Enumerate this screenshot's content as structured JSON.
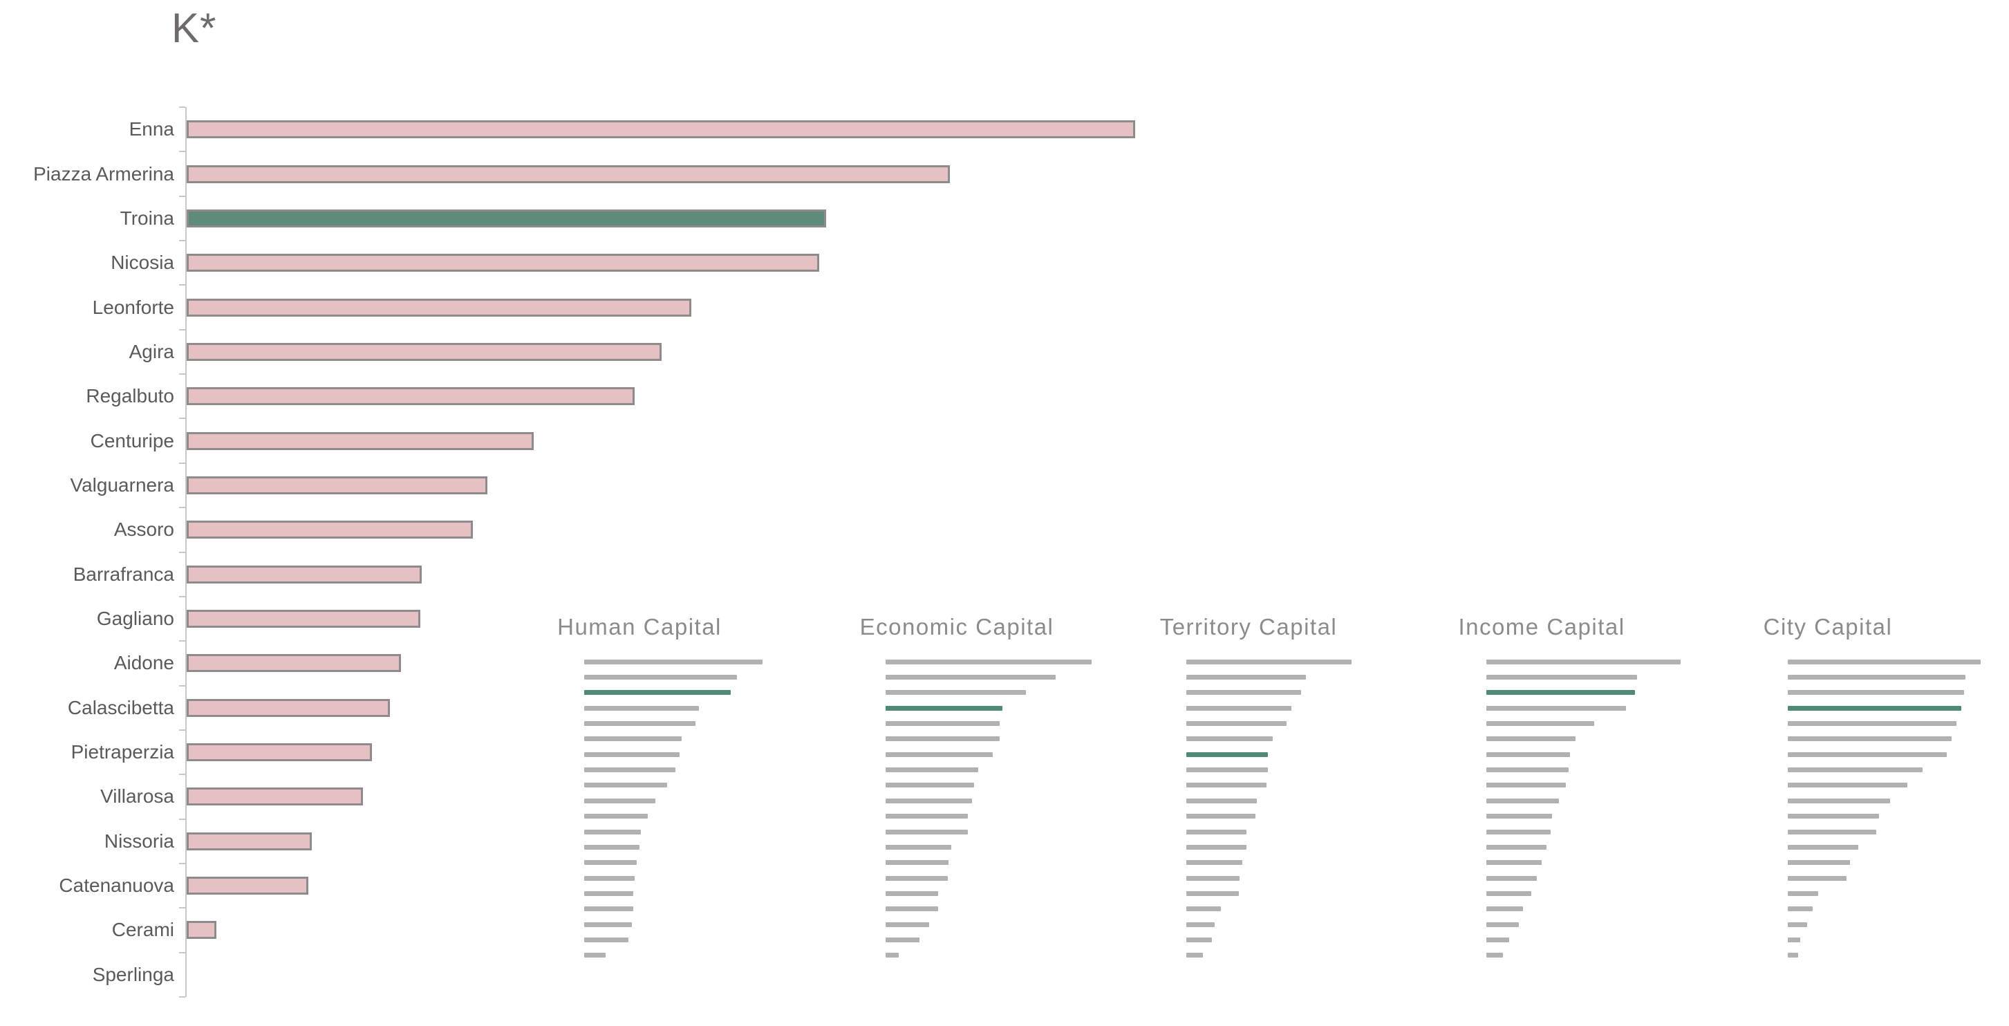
{
  "page": {
    "background": "#ffffff"
  },
  "chart_data": [
    {
      "id": "k-star-ranking",
      "type": "bar",
      "orientation": "horizontal",
      "title": "K*",
      "categories": [
        "Enna",
        "Piazza Armerina",
        "Troina",
        "Nicosia",
        "Leonforte",
        "Agira",
        "Regalbuto",
        "Centuripe",
        "Valguarnera",
        "Assoro",
        "Barrafranca",
        "Gagliano",
        "Aidone",
        "Calascibetta",
        "Pietraperzia",
        "Villarosa",
        "Nissoria",
        "Catenanuova",
        "Cerami",
        "Sperlinga"
      ],
      "values": [
        100,
        80.5,
        67.4,
        66.7,
        53.2,
        50.1,
        47.2,
        36.6,
        31.7,
        30.2,
        24.8,
        24.6,
        22.6,
        21.4,
        19.5,
        18.6,
        13.2,
        12.8,
        3.1,
        0
      ],
      "value_scale": "percent of longest bar (no numeric axis labels shown)",
      "xlim": [
        0,
        100
      ],
      "grid": false,
      "legend": false,
      "highlight": {
        "category": "Troina",
        "index": 2
      },
      "colors": {
        "bar": "#e6c1c4",
        "bar_border": "#8f8b8d",
        "highlight": "#5f8b78",
        "axis": "#c9c7c7",
        "label_text": "#5a5a5a",
        "title_text": "#6f6b6b"
      }
    },
    {
      "id": "human-capital",
      "type": "bar",
      "orientation": "horizontal",
      "title": "Human Capital",
      "values": [
        100,
        85.7,
        82.1,
        64.3,
        62.3,
        54.5,
        53.6,
        51.3,
        46.5,
        40,
        35.7,
        31.6,
        30.9,
        29.5,
        28.3,
        27.7,
        27.7,
        26.6,
        24.7,
        12
      ],
      "highlight_index": 2,
      "colors": {
        "bar": "#b3b0b0",
        "highlight": "#4f8a74",
        "title_text": "#8b8b8b"
      },
      "grid": false,
      "legend": false,
      "axis_labels_visible": false
    },
    {
      "id": "economic-capital",
      "type": "bar",
      "orientation": "horizontal",
      "title": "Economic Capital",
      "values": [
        100,
        82.5,
        68.2,
        56.6,
        55.5,
        55.5,
        52.1,
        44.8,
        43.1,
        41.9,
        40,
        40,
        31.8,
        30.7,
        30.1,
        25.4,
        25.4,
        21.1,
        16.6,
        6.4
      ],
      "highlight_index": 3,
      "colors": {
        "bar": "#b3b0b0",
        "highlight": "#4f8a74",
        "title_text": "#8b8b8b"
      },
      "grid": false,
      "legend": false,
      "axis_labels_visible": false
    },
    {
      "id": "territory-capital",
      "type": "bar",
      "orientation": "horizontal",
      "title": "Territory Capital",
      "values": [
        100,
        72.5,
        69.3,
        63.5,
        60.7,
        52.3,
        49.5,
        49.5,
        48.4,
        42.5,
        41.8,
        36.5,
        36.3,
        33.8,
        32.1,
        31.7,
        20.9,
        17,
        15.6,
        10
      ],
      "highlight_index": 6,
      "colors": {
        "bar": "#b3b0b0",
        "highlight": "#4f8a74",
        "title_text": "#8b8b8b"
      },
      "grid": false,
      "legend": false,
      "axis_labels_visible": false
    },
    {
      "id": "income-capital",
      "type": "bar",
      "orientation": "horizontal",
      "title": "Income Capital",
      "values": [
        100,
        77.7,
        76.5,
        71.8,
        55.4,
        45.8,
        43.2,
        42.3,
        41.1,
        37.3,
        33.9,
        33.1,
        31,
        28.6,
        26,
        23.2,
        19,
        16.7,
        11.9,
        8.7
      ],
      "highlight_index": 2,
      "colors": {
        "bar": "#b3b0b0",
        "highlight": "#4f8a74",
        "title_text": "#8b8b8b"
      },
      "grid": false,
      "legend": false,
      "axis_labels_visible": false
    },
    {
      "id": "city-capital",
      "type": "bar",
      "orientation": "horizontal",
      "title": "City Capital",
      "values": [
        100,
        92,
        91.5,
        89.8,
        87.4,
        85,
        82.4,
        69.8,
        62,
        53,
        47.3,
        45.9,
        36.5,
        32.1,
        30.3,
        15.6,
        12.9,
        10.2,
        6.6,
        5.4
      ],
      "highlight_index": 3,
      "colors": {
        "bar": "#b3b0b0",
        "highlight": "#4f8a74",
        "title_text": "#8b8b8b"
      },
      "grid": false,
      "legend": false,
      "axis_labels_visible": false
    }
  ]
}
